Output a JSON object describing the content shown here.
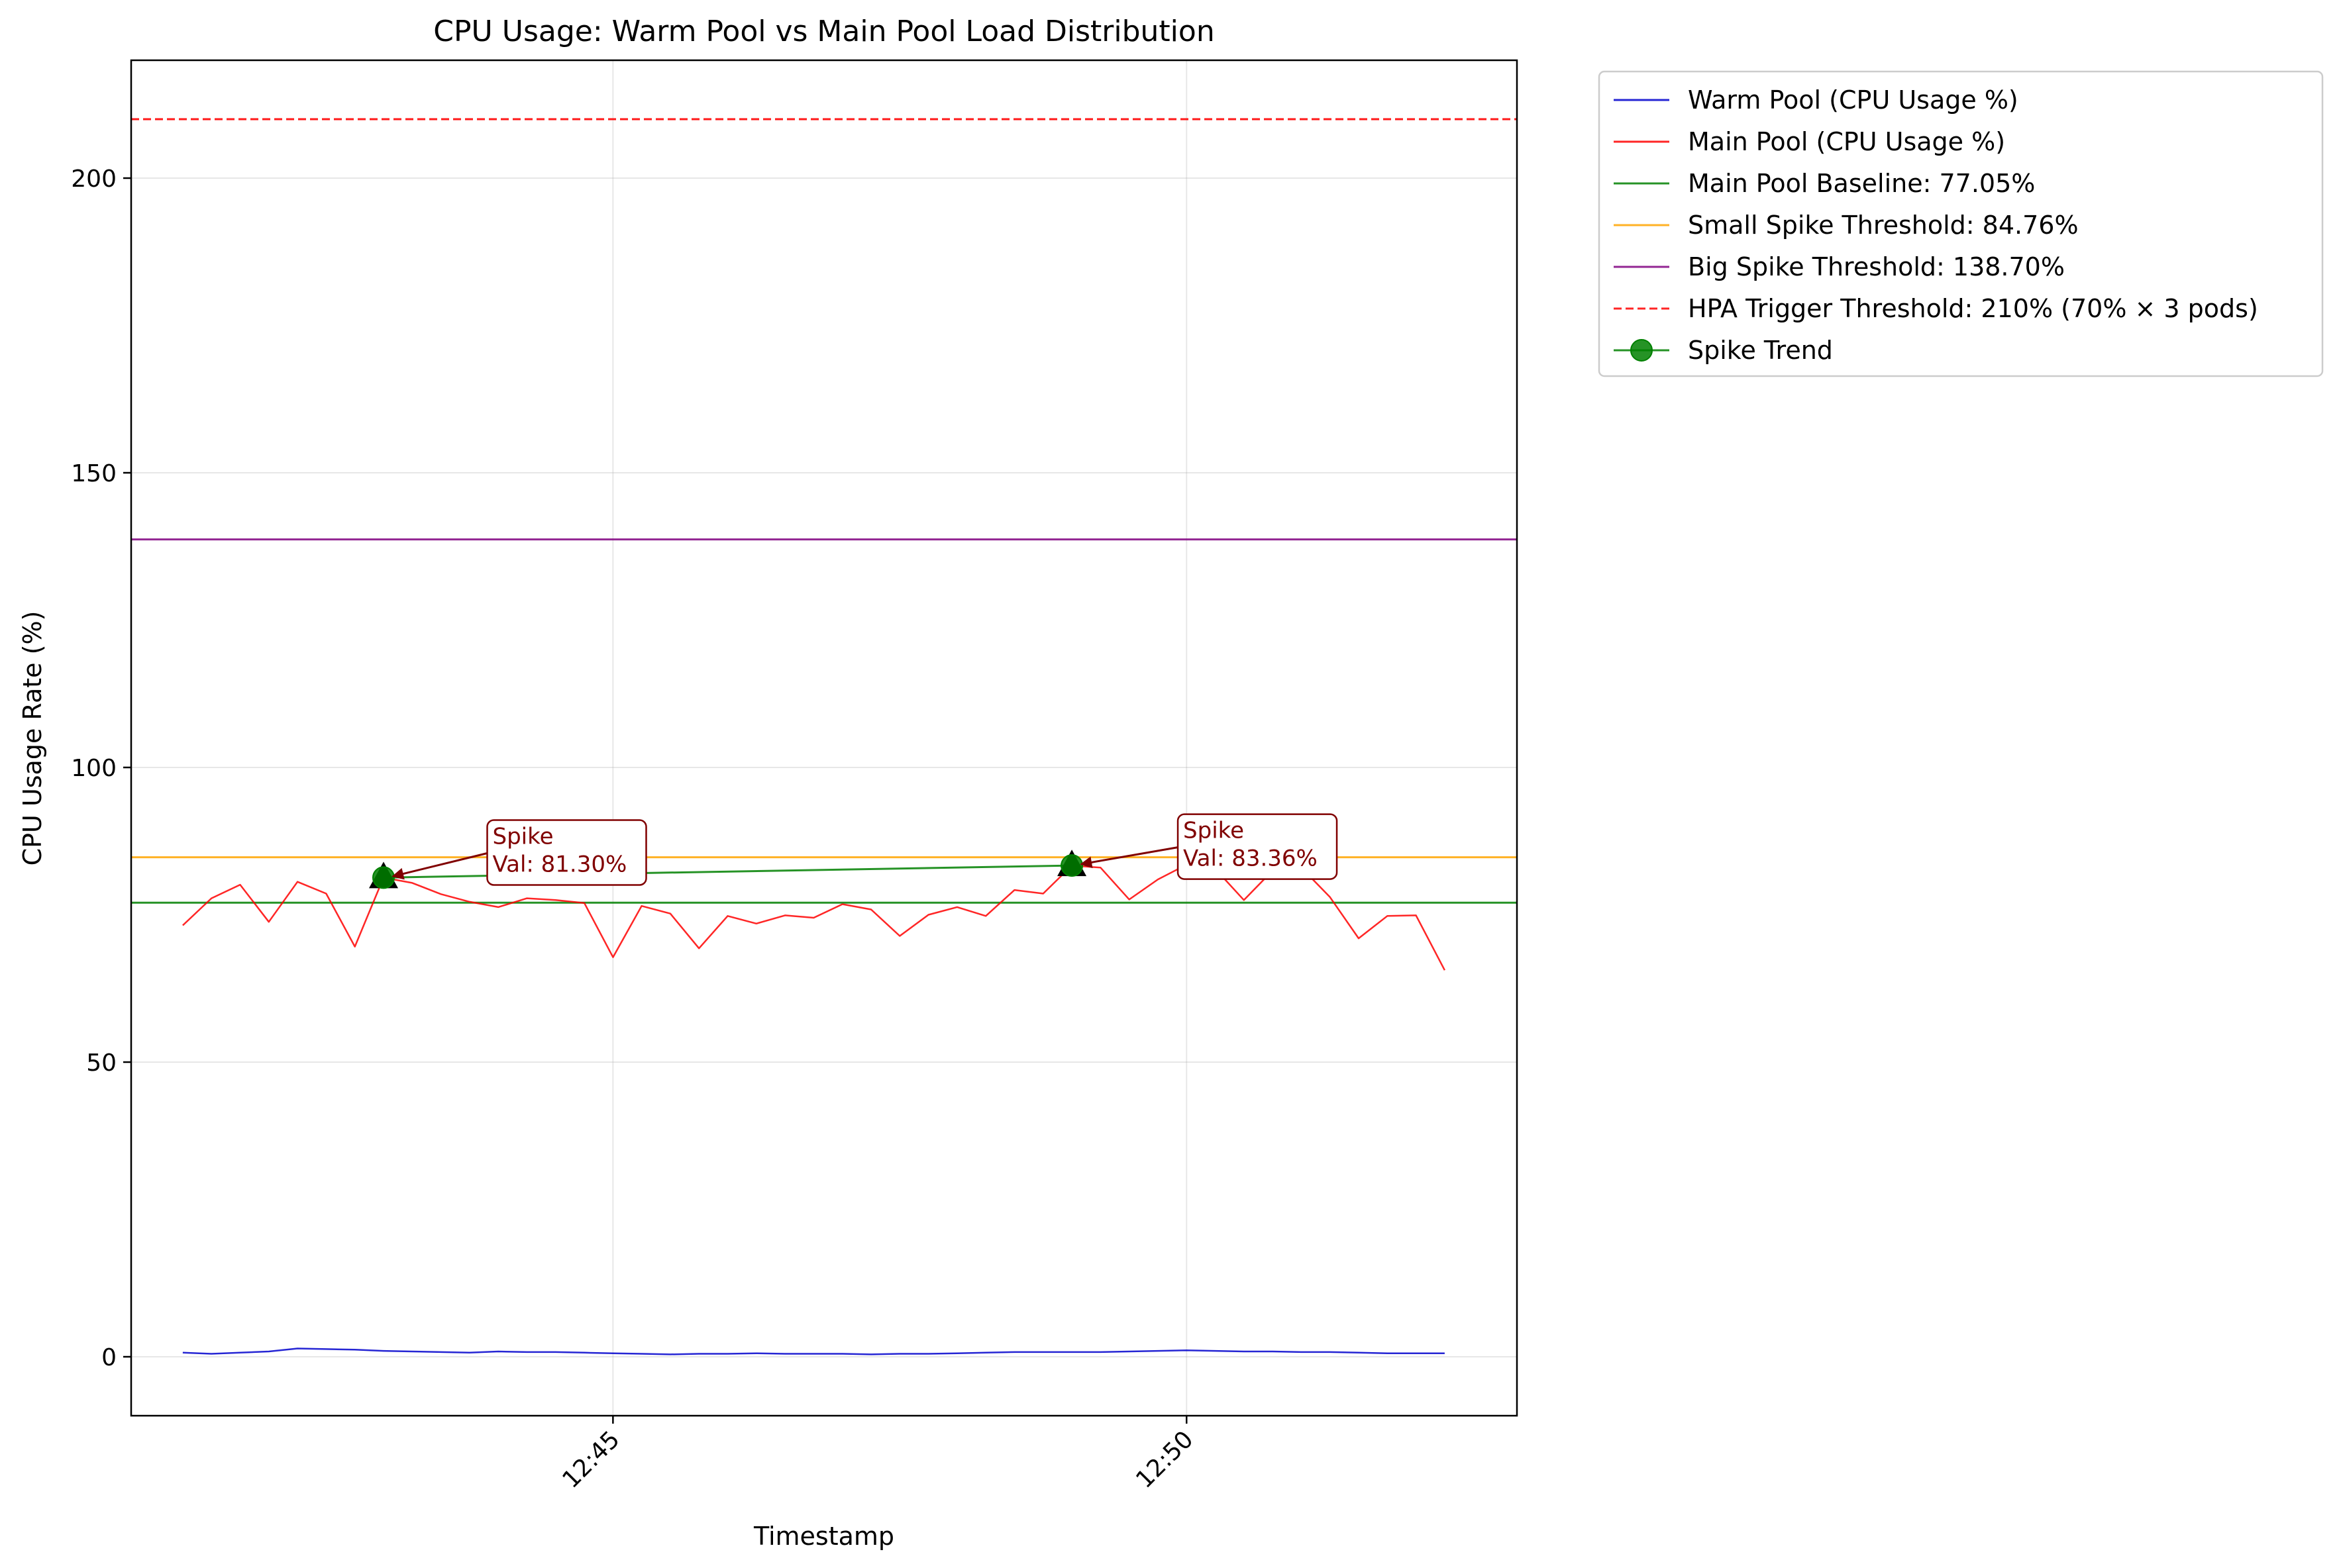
{
  "chart_data": {
    "type": "line",
    "title": "CPU Usage: Warm Pool vs Main Pool Load Distribution",
    "xlabel": "Timestamp",
    "ylabel": "CPU Usage Rate (%)",
    "ylim": [
      -10,
      220
    ],
    "yticks": [
      0,
      50,
      100,
      150,
      200
    ],
    "xlim_minutes": [
      40.8,
      52.88
    ],
    "xticks": [
      {
        "label": "12:45",
        "minute": 45.0
      },
      {
        "label": "12:50",
        "minute": 50.0
      }
    ],
    "grid": true,
    "legend_position": "outside-top-right",
    "x_minutes": [
      41.25,
      41.5,
      41.75,
      42.0,
      42.25,
      42.5,
      42.75,
      43.0,
      43.25,
      43.5,
      43.75,
      44.0,
      44.25,
      44.5,
      44.75,
      45.0,
      45.25,
      45.5,
      45.75,
      46.0,
      46.25,
      46.5,
      46.75,
      47.0,
      47.25,
      47.5,
      47.75,
      48.0,
      48.25,
      48.5,
      48.75,
      49.0,
      49.25,
      49.5,
      49.75,
      50.0,
      50.25,
      50.5,
      50.75,
      51.0,
      51.25,
      51.5,
      51.75,
      52.0,
      52.25
    ],
    "series": [
      {
        "name": "Warm Pool (CPU Usage %)",
        "color": "#0000cc",
        "values": [
          0.7,
          0.5,
          0.7,
          0.9,
          1.4,
          1.3,
          1.2,
          1.0,
          0.9,
          0.8,
          0.7,
          0.9,
          0.8,
          0.8,
          0.7,
          0.6,
          0.5,
          0.4,
          0.5,
          0.5,
          0.6,
          0.5,
          0.5,
          0.5,
          0.4,
          0.5,
          0.5,
          0.6,
          0.7,
          0.8,
          0.8,
          0.8,
          0.8,
          0.9,
          1.0,
          1.1,
          1.0,
          0.9,
          0.9,
          0.8,
          0.8,
          0.7,
          0.6,
          0.6,
          0.6
        ]
      },
      {
        "name": "Main Pool (CPU Usage %)",
        "color": "#ff0000",
        "values": [
          73.2,
          77.8,
          80.1,
          73.8,
          80.6,
          78.6,
          69.6,
          81.3,
          80.4,
          78.5,
          77.2,
          76.3,
          77.8,
          77.5,
          77.0,
          67.8,
          76.5,
          75.2,
          69.3,
          74.8,
          73.5,
          74.9,
          74.5,
          76.8,
          75.9,
          71.4,
          75.0,
          76.3,
          74.8,
          79.2,
          78.6,
          83.36,
          83.0,
          77.6,
          81.0,
          83.5,
          82.8,
          77.5,
          82.5,
          83.0,
          78.0,
          71.0,
          74.8,
          74.9,
          65.6
        ]
      }
    ],
    "reference_lines": [
      {
        "name": "Main Pool Baseline: 77.05%",
        "value": 77.05,
        "color": "#008000",
        "style": "solid"
      },
      {
        "name": "Small Spike Threshold: 84.76%",
        "value": 84.76,
        "color": "#ffa500",
        "style": "solid"
      },
      {
        "name": "Big Spike Threshold: 138.70%",
        "value": 138.7,
        "color": "#800080",
        "style": "solid"
      },
      {
        "name": "HPA Trigger Threshold: 210% (70% × 3 pods)",
        "value": 210,
        "color": "#ff0000",
        "style": "dashed"
      }
    ],
    "spike_trend": {
      "name": "Spike Trend",
      "color": "#008000",
      "points": [
        {
          "minute": 43.0,
          "value": 81.3
        },
        {
          "minute": 49.0,
          "value": 83.36
        }
      ]
    },
    "annotations": [
      {
        "title": "Spike",
        "text": "Val: 81.30%",
        "minute": 43.0,
        "value": 81.3,
        "label_minute": 43.95,
        "label_value": 85.0
      },
      {
        "title": "Spike",
        "text": "Val: 83.36%",
        "minute": 49.0,
        "value": 83.36,
        "label_minute": 49.97,
        "label_value": 86.0
      }
    ]
  }
}
